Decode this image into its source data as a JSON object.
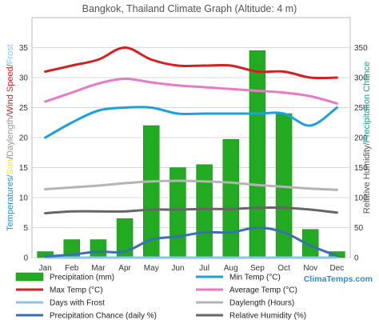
{
  "chart_data": {
    "type": "bar",
    "title": "Bangkok, Thailand Climate Graph (Altitude: 4 m)",
    "categories": [
      "Jan",
      "Feb",
      "Mar",
      "Apr",
      "May",
      "Jun",
      "Jul",
      "Aug",
      "Sep",
      "Oct",
      "Nov",
      "Dec"
    ],
    "left_axis": {
      "ylim": [
        0,
        40
      ],
      "ticks": [
        0,
        5,
        10,
        15,
        20,
        25,
        30,
        35
      ],
      "label_parts": [
        {
          "text": "Temperatures/",
          "color": "#1f8fd6"
        },
        {
          "text": "Sun",
          "color": "#f2e23a"
        },
        {
          "text": "/",
          "color": "#555555"
        },
        {
          "text": "Daylength",
          "color": "#9a9a9a"
        },
        {
          "text": "/",
          "color": "#555555"
        },
        {
          "text": "Wind Speed",
          "color": "#d42020"
        },
        {
          "text": "/",
          "color": "#555555"
        },
        {
          "text": "Frost",
          "color": "#8ac6ec"
        }
      ]
    },
    "right_axis": {
      "ylim": [
        0,
        400
      ],
      "ticks": [
        0,
        50,
        100,
        150,
        200,
        250,
        300,
        350
      ],
      "label_parts": [
        {
          "text": "Relative Humidity/",
          "color": "#555555"
        },
        {
          "text": "Precipitation Chance",
          "color": "#1aa38c"
        }
      ]
    },
    "grid": true,
    "series": [
      {
        "key": "precip",
        "name": "Precipitation (mm)",
        "axis": "right",
        "kind": "bar",
        "color": "#22aa22",
        "values": [
          10,
          30,
          30,
          65,
          220,
          150,
          155,
          197,
          345,
          240,
          47,
          10
        ]
      },
      {
        "key": "min",
        "name": "Min Temp (°C)",
        "axis": "left",
        "kind": "line",
        "color": "#1ea0e0",
        "values": [
          20,
          22.5,
          24.5,
          25,
          25,
          24,
          24,
          24,
          24,
          24,
          22,
          25
        ]
      },
      {
        "key": "max",
        "name": "Max Temp (°C)",
        "axis": "left",
        "kind": "line",
        "color": "#d42020",
        "values": [
          31,
          32,
          33,
          35,
          33,
          32,
          32,
          32,
          31,
          31,
          30,
          30
        ]
      },
      {
        "key": "avg",
        "name": "Average Temp (°C)",
        "axis": "left",
        "kind": "line",
        "color": "#e87ac8",
        "values": [
          26,
          27.5,
          29,
          29.8,
          29.2,
          28.7,
          28.4,
          28.1,
          27.8,
          27.5,
          26.9,
          25.7
        ]
      },
      {
        "key": "frost",
        "name": "Days with Frost",
        "axis": "left",
        "kind": "line",
        "color": "#8ac6ec",
        "values": [
          0,
          0,
          0,
          0,
          0,
          0,
          0,
          0,
          0,
          0,
          0,
          0
        ]
      },
      {
        "key": "daylength",
        "name": "Daylength (Hours)",
        "axis": "left",
        "kind": "line",
        "color": "#b4b4b4",
        "values": [
          11.4,
          11.7,
          12.0,
          12.4,
          12.7,
          12.8,
          12.7,
          12.5,
          12.1,
          11.8,
          11.5,
          11.3
        ]
      },
      {
        "key": "chance",
        "name": "Precipitation Chance (daily %)",
        "axis": "right",
        "kind": "line",
        "color": "#3a6fb0",
        "values": [
          2,
          5,
          10,
          10,
          30,
          35,
          42,
          42,
          50,
          42,
          20,
          3
        ]
      },
      {
        "key": "humidity",
        "name": "Relative Humidity (%)",
        "axis": "right",
        "kind": "line",
        "color": "#666666",
        "values": [
          74,
          77,
          77,
          77,
          80,
          80,
          81,
          81,
          83,
          83,
          80,
          75
        ]
      }
    ],
    "legend_order": [
      "precip",
      "min",
      "max",
      "avg",
      "frost",
      "daylength",
      "chance",
      "humidity"
    ],
    "legend_placement": "bottom",
    "watermark": "ClimaTemps.com"
  }
}
